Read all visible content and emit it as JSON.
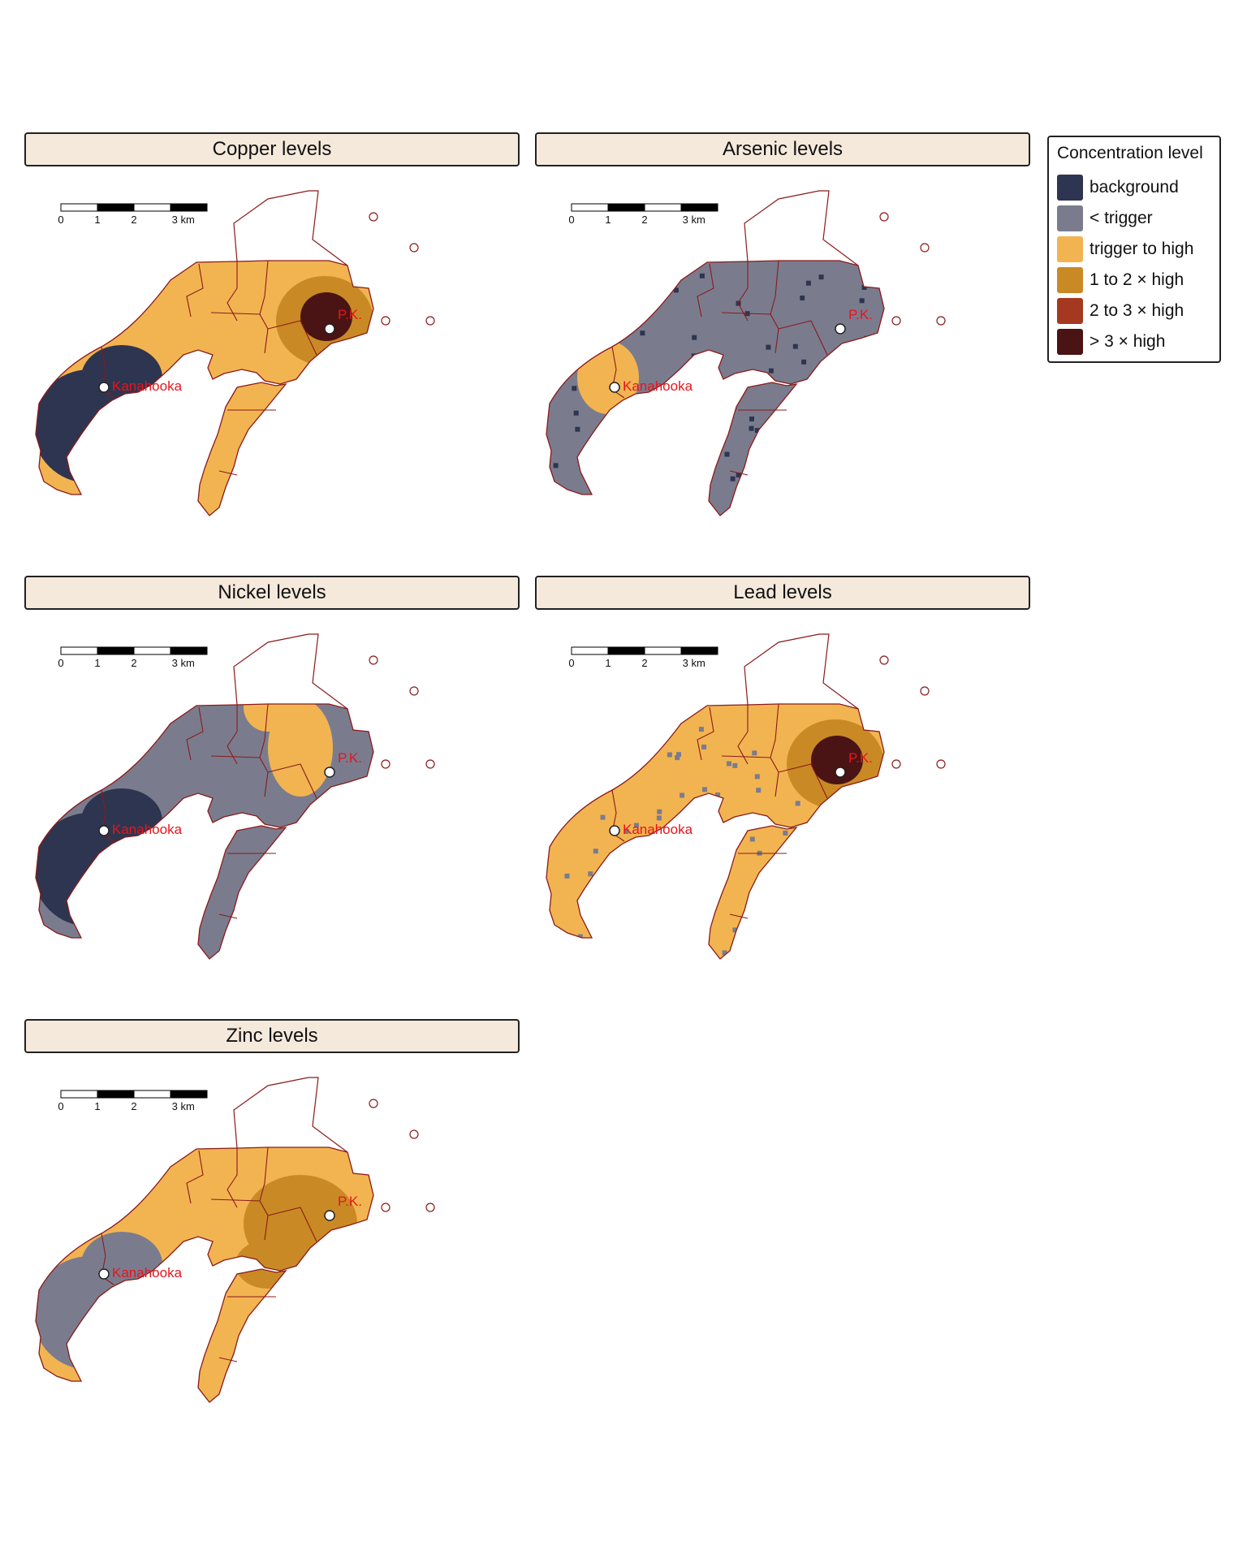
{
  "legend": {
    "title": "Concentration level",
    "items": [
      {
        "label": "background",
        "color": "#2e3550"
      },
      {
        "label": "< trigger",
        "color": "#7a7c8e"
      },
      {
        "label": "trigger to high",
        "color": "#f2b451"
      },
      {
        "label": "1 to 2 × high",
        "color": "#c98a25"
      },
      {
        "label": "2 to 3 × high",
        "color": "#a5391f"
      },
      {
        "label": "> 3 × high",
        "color": "#4a1414"
      }
    ]
  },
  "scalebar": {
    "ticks": [
      "0",
      "1",
      "2",
      "3 km"
    ]
  },
  "places": {
    "left": "Kanahooka",
    "right": "P.K."
  },
  "panels": [
    {
      "id": "copper",
      "title": "Copper levels",
      "base_level": "trigger to high",
      "hotspot_level": "> 3 × high",
      "hotspot_location": "P.K.",
      "secondary_level": "background",
      "secondary_location": "west"
    },
    {
      "id": "arsenic",
      "title": "Arsenic levels",
      "base_level": "< trigger",
      "hotspot_level": "trigger to high",
      "hotspot_location": "Kanahooka",
      "secondary_level": "background",
      "secondary_location": "scattered"
    },
    {
      "id": "nickel",
      "title": "Nickel levels",
      "base_level": "< trigger",
      "hotspot_level": "trigger to high",
      "hotspot_location": "north-east",
      "secondary_level": "background",
      "secondary_location": "west"
    },
    {
      "id": "lead",
      "title": "Lead levels",
      "base_level": "trigger to high",
      "hotspot_level": "> 3 × high",
      "hotspot_location": "P.K.",
      "secondary_level": "< trigger",
      "secondary_location": "scattered"
    },
    {
      "id": "zinc",
      "title": "Zinc levels",
      "base_level": "trigger to high",
      "hotspot_level": "1 to 2 × high",
      "hotspot_location": "east",
      "secondary_level": "< trigger",
      "secondary_location": "west"
    }
  ],
  "colors": {
    "boundary": "#8b1a1a",
    "label": "#e8141c",
    "marker_fill": "#ffffff",
    "marker_stroke": "#222222"
  }
}
